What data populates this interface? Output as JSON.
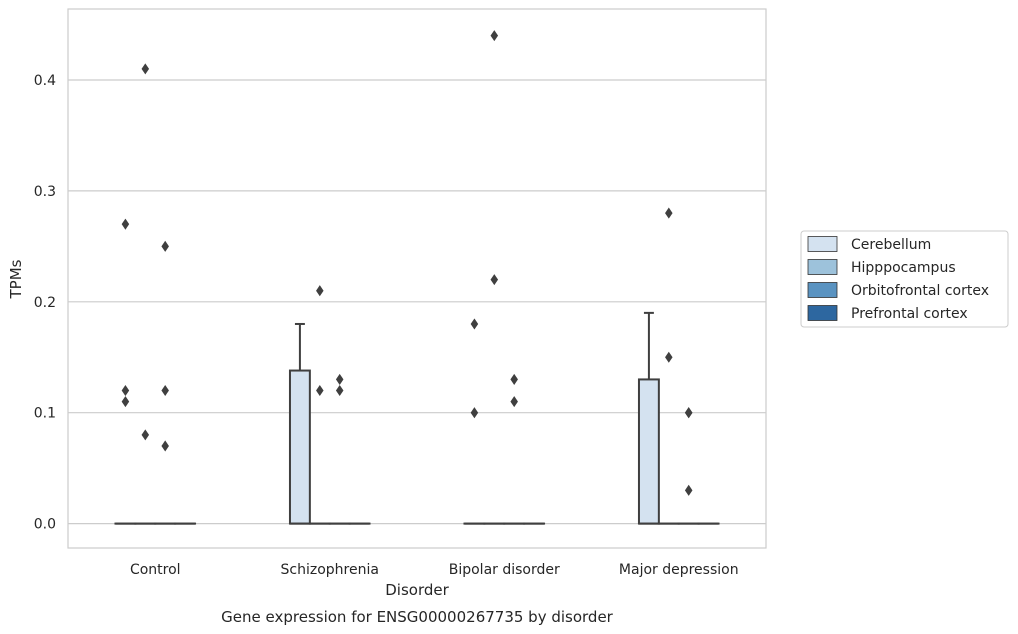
{
  "chart_data": {
    "type": "box",
    "title": "",
    "caption": "Gene expression for ENSG00000267735 by disorder",
    "xlabel": "Disorder",
    "ylabel": "TPMs",
    "categories": [
      "Control",
      "Schizophrenia",
      "Bipolar disorder",
      "Major depression"
    ],
    "yticks": [
      "0.0",
      "0.1",
      "0.2",
      "0.3",
      "0.4"
    ],
    "ylim": [
      -0.022,
      0.464
    ],
    "grid": "horizontal",
    "legend_position": "right",
    "series": [
      {
        "name": "Cerebellum",
        "color": "#d4e2f0",
        "boxes": [
          {
            "q1": 0,
            "median": 0,
            "q3": 0,
            "whislo": 0,
            "whishi": 0,
            "fliers": [
              0.27,
              0.12,
              0.11
            ]
          },
          {
            "q1": 0,
            "median": 0,
            "q3": 0.138,
            "whislo": 0,
            "whishi": 0.18,
            "fliers": []
          },
          {
            "q1": 0,
            "median": 0,
            "q3": 0,
            "whislo": 0,
            "whishi": 0,
            "fliers": [
              0.18,
              0.1
            ]
          },
          {
            "q1": 0,
            "median": 0,
            "q3": 0.13,
            "whislo": 0,
            "whishi": 0.19,
            "fliers": []
          }
        ]
      },
      {
        "name": "Hipppocampus",
        "color": "#9dc2db",
        "boxes": [
          {
            "q1": 0,
            "median": 0,
            "q3": 0,
            "whislo": 0,
            "whishi": 0,
            "fliers": [
              0.41,
              0.08
            ]
          },
          {
            "q1": 0,
            "median": 0,
            "q3": 0,
            "whislo": 0,
            "whishi": 0,
            "fliers": [
              0.21,
              0.12
            ]
          },
          {
            "q1": 0,
            "median": 0,
            "q3": 0,
            "whislo": 0,
            "whishi": 0,
            "fliers": [
              0.22,
              0.44
            ]
          },
          {
            "q1": 0,
            "median": 0,
            "q3": 0,
            "whislo": 0,
            "whishi": 0,
            "fliers": [
              0.28,
              0.15
            ]
          }
        ]
      },
      {
        "name": "Orbitofrontal cortex",
        "color": "#5a93c1",
        "boxes": [
          {
            "q1": 0,
            "median": 0,
            "q3": 0,
            "whislo": 0,
            "whishi": 0,
            "fliers": [
              0.25,
              0.12,
              0.07
            ]
          },
          {
            "q1": 0,
            "median": 0,
            "q3": 0,
            "whislo": 0,
            "whishi": 0,
            "fliers": [
              0.13,
              0.12
            ]
          },
          {
            "q1": 0,
            "median": 0,
            "q3": 0,
            "whislo": 0,
            "whishi": 0,
            "fliers": [
              0.13,
              0.11
            ]
          },
          {
            "q1": 0,
            "median": 0,
            "q3": 0,
            "whislo": 0,
            "whishi": 0,
            "fliers": [
              0.1,
              0.1,
              0.03
            ]
          }
        ]
      },
      {
        "name": "Prefrontal cortex",
        "color": "#2d67a0",
        "boxes": [
          {
            "q1": 0,
            "median": 0,
            "q3": 0,
            "whislo": 0,
            "whishi": 0,
            "fliers": []
          },
          {
            "q1": 0,
            "median": 0,
            "q3": 0,
            "whislo": 0,
            "whishi": 0,
            "fliers": []
          },
          {
            "q1": 0,
            "median": 0,
            "q3": 0,
            "whislo": 0,
            "whishi": 0,
            "fliers": []
          },
          {
            "q1": 0,
            "median": 0,
            "q3": 0,
            "whislo": 0,
            "whishi": 0,
            "fliers": []
          }
        ]
      }
    ]
  }
}
